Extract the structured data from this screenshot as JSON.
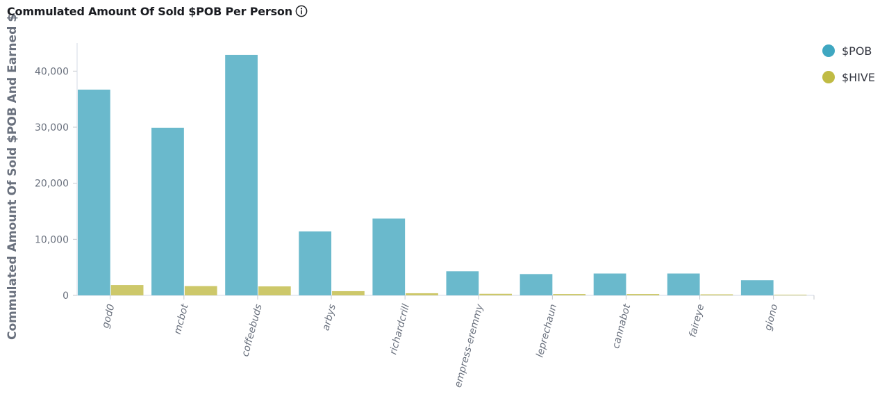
{
  "header": {
    "title": "Commulated Amount Of Sold $POB Per Person",
    "info_icon": "info-icon"
  },
  "chart_data": {
    "type": "bar",
    "ylabel": "Commulated Amount Of Sold $POB And Earned $",
    "xlabel": "",
    "categories": [
      "god0",
      "mcbot",
      "coffeebuds",
      "arbys",
      "richardcrill",
      "empress-eremmy",
      "leprechaun",
      "cannabot",
      "faireye",
      "giono"
    ],
    "series": [
      {
        "name": "$POB",
        "color": "#6ab9cc",
        "values": [
          36700,
          29900,
          42900,
          11400,
          13700,
          4300,
          3800,
          3900,
          3900,
          2700
        ]
      },
      {
        "name": "$HIVE",
        "color": "#cdc86a",
        "values": [
          1850,
          1650,
          1600,
          750,
          380,
          280,
          240,
          240,
          180,
          120
        ]
      }
    ],
    "ylim": [
      0,
      45000
    ],
    "yticks": [
      0,
      10000,
      20000,
      30000,
      40000
    ],
    "ytick_labels": [
      "0",
      "10,000",
      "20,000",
      "30,000",
      "40,000"
    ],
    "grid": false,
    "legend_position": "top-right"
  },
  "legend": {
    "items": [
      {
        "label": "$POB",
        "color": "#3fa7c1"
      },
      {
        "label": "$HIVE",
        "color": "#c0bb44"
      }
    ]
  }
}
